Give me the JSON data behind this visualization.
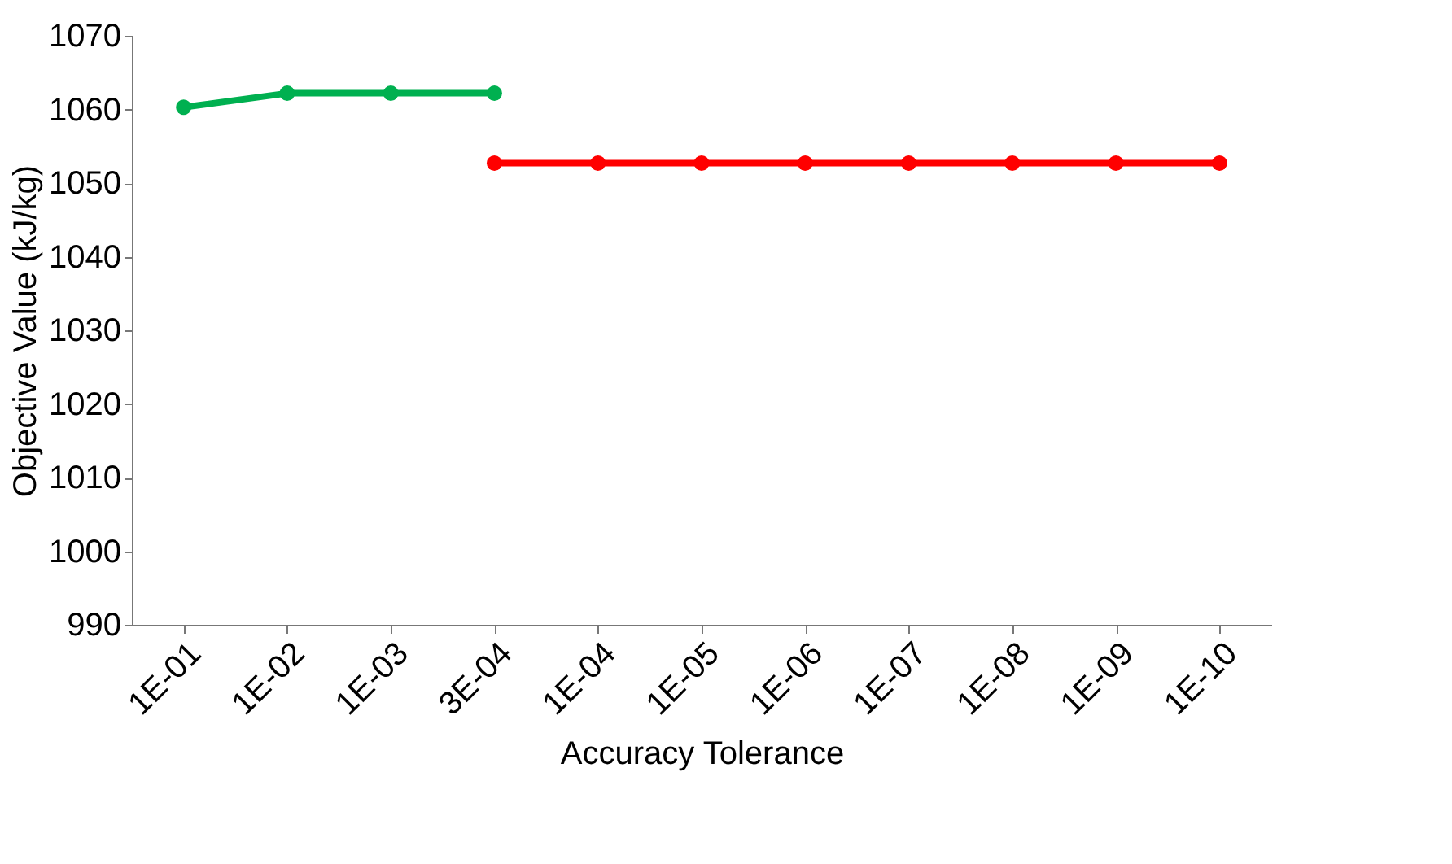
{
  "chart_data": {
    "type": "line",
    "xlabel": "Accuracy Tolerance",
    "ylabel": "Objective Value (kJ/kg)",
    "categories": [
      "1E-01",
      "1E-02",
      "1E-03",
      "3E-04",
      "1E-04",
      "1E-05",
      "1E-06",
      "1E-07",
      "1E-08",
      "1E-09",
      "1E-10"
    ],
    "series": [
      {
        "color": "#00b050",
        "values": [
          1060.3,
          1062.2,
          1062.2,
          1062.2,
          null,
          null,
          null,
          null,
          null,
          null,
          null
        ]
      },
      {
        "color": "#ff0000",
        "values": [
          null,
          null,
          null,
          1052.7,
          1052.7,
          1052.7,
          1052.7,
          1052.7,
          1052.7,
          1052.7,
          1052.7
        ]
      }
    ],
    "ylim": [
      990,
      1070
    ],
    "yticks": [
      990,
      1000,
      1010,
      1020,
      1030,
      1040,
      1050,
      1060,
      1070
    ],
    "grid": false,
    "marker": "circle",
    "line_style": "solid"
  }
}
